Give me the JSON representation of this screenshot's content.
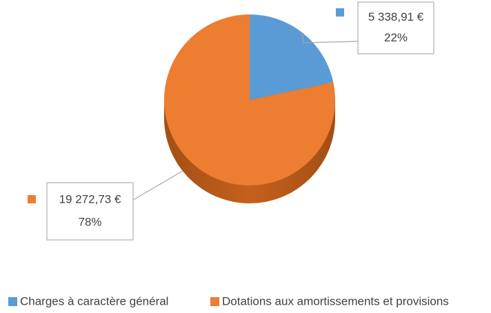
{
  "chart_data": {
    "type": "pie",
    "categories": [
      "Charges à caractère général",
      "Dotations aux amortissements et provisions"
    ],
    "values": [
      5338.91,
      19272.73
    ],
    "value_labels": [
      "5 338,91 €",
      "19 272,73 €"
    ],
    "percents": [
      22,
      78
    ],
    "percent_labels": [
      "22%",
      "78%"
    ],
    "colors": [
      "#5b9bd5",
      "#ed7d31"
    ],
    "legend": "bottom"
  }
}
